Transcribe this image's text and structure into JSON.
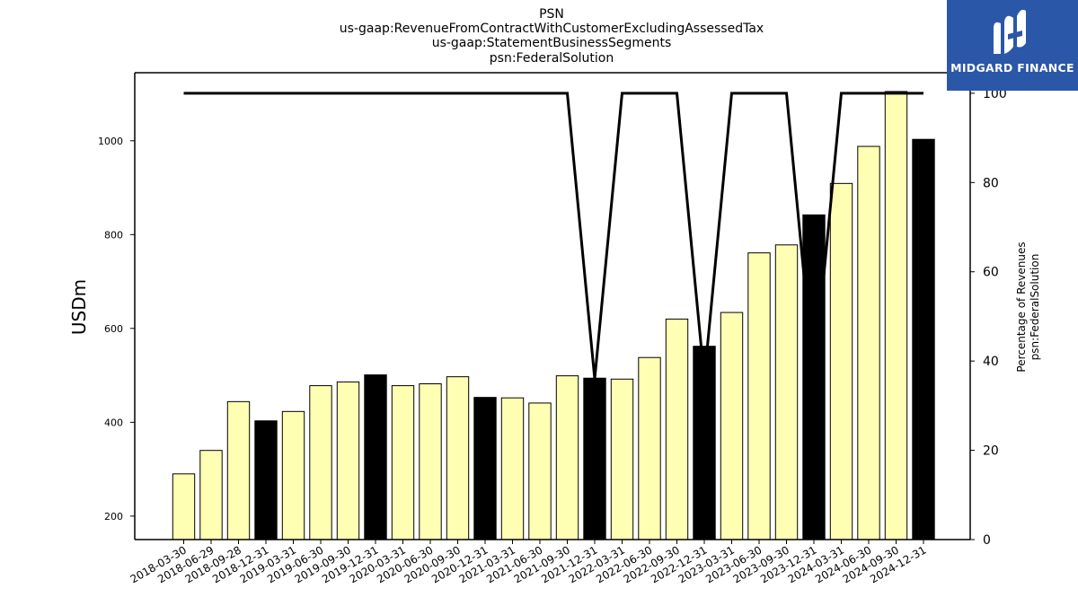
{
  "brand": {
    "name": "MIDGARD FINANCE",
    "logo_icon": "midgard-logo-icon"
  },
  "chart_data": {
    "type": "bar",
    "title_lines": [
      "PSN",
      "us-gaap:RevenueFromContractWithCustomerExcludingAssessedTax",
      "us-gaap:StatementBusinessSegments",
      "psn:FederalSolution"
    ],
    "ylabel": "USDm",
    "ylabel_right": [
      "Percentage of Revenues",
      "psn:FederalSolution"
    ],
    "ylim": [
      150,
      1145
    ],
    "ylim_right": [
      0,
      104.6
    ],
    "yticks": [
      200,
      400,
      600,
      800,
      1000
    ],
    "yticks_right": [
      0,
      20,
      40,
      60,
      80,
      100
    ],
    "categories": [
      "2018-03-30",
      "2018-06-29",
      "2018-09-28",
      "2018-12-31",
      "2019-03-31",
      "2019-06-30",
      "2019-09-30",
      "2019-12-31",
      "2020-03-31",
      "2020-06-30",
      "2020-09-30",
      "2020-12-31",
      "2021-03-31",
      "2021-06-30",
      "2021-09-30",
      "2021-12-31",
      "2022-03-31",
      "2022-06-30",
      "2022-09-30",
      "2022-12-31",
      "2023-03-31",
      "2023-06-30",
      "2023-09-30",
      "2023-12-31",
      "2024-03-31",
      "2024-06-30",
      "2024-09-30",
      "2024-12-31"
    ],
    "series": [
      {
        "axis": "left",
        "type": "bar",
        "values": [
          290,
          340,
          444,
          403,
          423,
          478,
          486,
          501,
          478,
          482,
          497,
          453,
          452,
          441,
          499,
          494,
          492,
          538,
          620,
          562,
          634,
          761,
          778,
          842,
          909,
          988,
          1105,
          1003
        ],
        "colors": [
          "#ffffb3",
          "#ffffb3",
          "#ffffb3",
          "#000000",
          "#ffffb3",
          "#ffffb3",
          "#ffffb3",
          "#000000",
          "#ffffb3",
          "#ffffb3",
          "#ffffb3",
          "#000000",
          "#ffffb3",
          "#ffffb3",
          "#ffffb3",
          "#000000",
          "#ffffb3",
          "#ffffb3",
          "#ffffb3",
          "#000000",
          "#ffffb3",
          "#ffffb3",
          "#ffffb3",
          "#000000",
          "#ffffb3",
          "#ffffb3",
          "#ffffb3",
          "#000000"
        ]
      },
      {
        "axis": "right",
        "type": "line",
        "color": "#000000",
        "values": [
          100,
          100,
          100,
          100,
          100,
          100,
          100,
          100,
          100,
          100,
          100,
          100,
          100,
          100,
          100,
          36,
          100,
          100,
          100,
          36,
          100,
          100,
          100,
          36,
          100,
          100,
          100,
          100
        ]
      }
    ],
    "grid": false,
    "legend": "none"
  }
}
